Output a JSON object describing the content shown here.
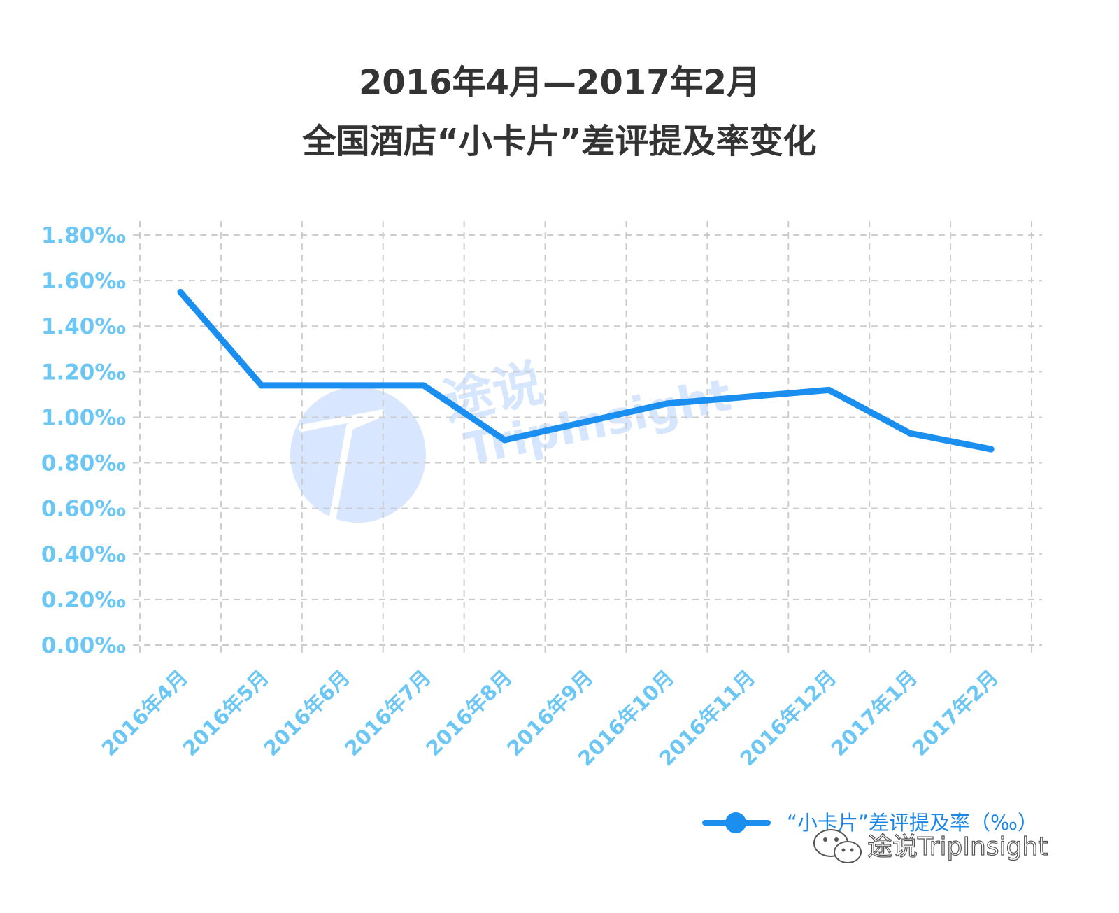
{
  "title": {
    "line1": "2016年4月—2017年2月",
    "line2": "全国酒店“小卡片”差评提及率变化"
  },
  "watermark": {
    "text1": "途说",
    "text2": "TripInsight"
  },
  "footer": {
    "brand": "途说TripInsight",
    "icon": "wechat-icon"
  },
  "colors": {
    "line": "#1b8ff0",
    "tick_label": "#6cc7f5",
    "grid": "#cccccc"
  },
  "chart_data": {
    "type": "line",
    "title": "2016年4月—2017年2月 全国酒店“小卡片”差评提及率变化",
    "categories": [
      "2016年4月",
      "2016年5月",
      "2016年6月",
      "2016年7月",
      "2016年8月",
      "2016年9月",
      "2016年10月",
      "2016年11月",
      "2016年12月",
      "2017年1月",
      "2017年2月"
    ],
    "series": [
      {
        "name": "“小卡片”差评提及率（‰）",
        "values": [
          1.55,
          1.14,
          1.14,
          1.14,
          0.9,
          0.98,
          1.06,
          1.09,
          1.12,
          0.93,
          0.86
        ]
      }
    ],
    "y_ticks": [
      "1.80‰",
      "1.60‰",
      "1.40‰",
      "1.20‰",
      "1.00‰",
      "0.80‰",
      "0.60‰",
      "0.40‰",
      "0.20‰",
      "0.00‰"
    ],
    "ylim": [
      0,
      1.8
    ],
    "grid": true,
    "legend": "bottom-right"
  }
}
